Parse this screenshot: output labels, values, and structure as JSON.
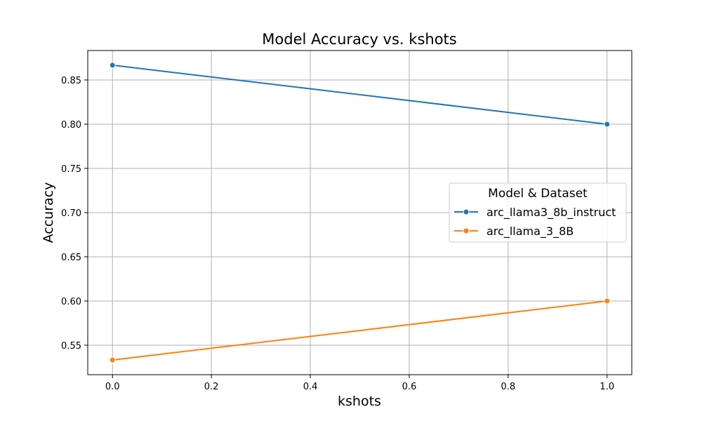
{
  "chart_data": {
    "type": "line",
    "title": "Model Accuracy vs. kshots",
    "xlabel": "kshots",
    "ylabel": "Accuracy",
    "xlim": [
      -0.05,
      1.05
    ],
    "ylim": [
      0.5167,
      0.8833
    ],
    "xticks": [
      0.0,
      0.2,
      0.4,
      0.6,
      0.8,
      1.0
    ],
    "xtick_labels": [
      "0.0",
      "0.2",
      "0.4",
      "0.6",
      "0.8",
      "1.0"
    ],
    "yticks": [
      0.55,
      0.6,
      0.65,
      0.7,
      0.75,
      0.8,
      0.85
    ],
    "ytick_labels": [
      "0.55",
      "0.60",
      "0.65",
      "0.70",
      "0.75",
      "0.80",
      "0.85"
    ],
    "grid": true,
    "legend": {
      "title": "Model & Dataset",
      "placement": "center-right"
    },
    "series": [
      {
        "name": "arc_llama3_8b_instruct",
        "color": "#1f77b4",
        "x": [
          0.0,
          1.0
        ],
        "y": [
          0.8667,
          0.8
        ]
      },
      {
        "name": "arc_llama_3_8B",
        "color": "#ff7f0e",
        "x": [
          0.0,
          1.0
        ],
        "y": [
          0.5333,
          0.6
        ]
      }
    ]
  }
}
